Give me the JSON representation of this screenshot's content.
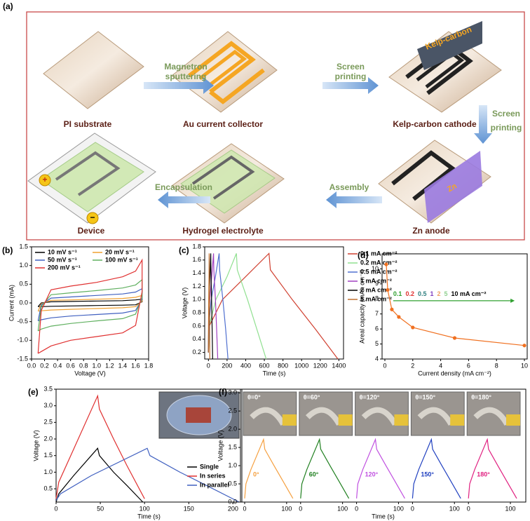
{
  "schematic": {
    "panel_label": "(a)",
    "steps": [
      "PI substrate",
      "Au current collector",
      "Kelp-carbon cathode",
      "Zn anode",
      "Hydrogel electrolyte",
      "Device"
    ],
    "arrows": [
      [
        "Magnetron",
        "sputtering"
      ],
      [
        "Screen",
        "printing"
      ],
      [
        "Screen",
        "printing"
      ],
      [
        "Assembly"
      ],
      [
        "Encapsulation"
      ]
    ],
    "kelp_label": "Kelp-carbon",
    "zn_label": "Zn",
    "plus": "+",
    "minus": "−"
  },
  "chart_data": [
    {
      "type": "line",
      "panel_label": "(b)",
      "xlabel": "Voltage (V)",
      "ylabel": "Current (mA)",
      "xlim": [
        0,
        1.8
      ],
      "ylim": [
        -1.5,
        1.5
      ],
      "xticks": [
        {
          "value": 0,
          "label": "0.0"
        },
        0.2,
        0.4,
        0.6,
        0.8,
        {
          "value": 1,
          "label": "1.0"
        },
        1.2,
        1.4,
        1.6,
        1.8
      ],
      "yticks": [
        -1.5,
        {
          "value": -1,
          "label": "-1.0"
        },
        -0.5,
        {
          "value": 0,
          "label": "0.0"
        },
        0.5,
        {
          "value": 1,
          "label": "1.0"
        },
        1.5
      ],
      "legend": "inside-top",
      "legend_columns": 2,
      "x": [
        0.1,
        0.15,
        0.3,
        0.6,
        1.0,
        1.4,
        1.6,
        1.7,
        1.7,
        1.6,
        1.4,
        1.0,
        0.6,
        0.3,
        0.15,
        0.1
      ],
      "series": [
        {
          "name": "10 mV s⁻¹",
          "color": "#000000",
          "values": [
            -0.1,
            0,
            0.03,
            0.04,
            0.05,
            0.06,
            0.08,
            0.1,
            0.03,
            -0.05,
            -0.06,
            -0.07,
            -0.08,
            -0.09,
            -0.1,
            -0.1
          ]
        },
        {
          "name": "20 mV s⁻¹",
          "color": "#f0a030",
          "values": [
            -0.22,
            -0.02,
            0.07,
            0.08,
            0.1,
            0.12,
            0.15,
            0.2,
            0.05,
            -0.1,
            -0.13,
            -0.15,
            -0.17,
            -0.19,
            -0.21,
            -0.22
          ]
        },
        {
          "name": "50 mV s⁻¹",
          "color": "#4060c0",
          "values": [
            -0.48,
            -0.05,
            0.13,
            0.16,
            0.2,
            0.24,
            0.29,
            0.38,
            0.1,
            -0.2,
            -0.27,
            -0.31,
            -0.35,
            -0.4,
            -0.45,
            -0.48
          ]
        },
        {
          "name": "100 mV s⁻¹",
          "color": "#60b060",
          "values": [
            -0.75,
            -0.1,
            0.22,
            0.27,
            0.33,
            0.4,
            0.48,
            0.62,
            0.15,
            -0.3,
            -0.42,
            -0.48,
            -0.55,
            -0.62,
            -0.7,
            -0.75
          ]
        },
        {
          "name": "200 mV s⁻¹",
          "color": "#e03030",
          "values": [
            -1.35,
            -0.2,
            0.35,
            0.45,
            0.55,
            0.7,
            0.85,
            1.15,
            0.3,
            -0.6,
            -0.8,
            -0.9,
            -1.0,
            -1.15,
            -1.3,
            -1.35
          ]
        }
      ]
    },
    {
      "type": "line",
      "panel_label": "(c)",
      "xlabel": "Time (s)",
      "ylabel": "Voltage (V)",
      "xlim": [
        -40,
        1450
      ],
      "ylim": [
        0.1,
        1.8
      ],
      "xticks": [
        0,
        200,
        400,
        600,
        800,
        1000,
        1200,
        1400
      ],
      "yticks": [
        0.2,
        0.4,
        0.6,
        0.8,
        {
          "value": 1,
          "label": "1.0"
        },
        1.2,
        1.4,
        1.6,
        1.8
      ],
      "legend": "outside-right",
      "series": [
        {
          "name": "0.1 mA cm⁻²",
          "color": "#d04030",
          "x": [
            0,
            10,
            150,
            400,
            650,
            665,
            900,
            1150,
            1390
          ],
          "values": [
            0.2,
            0.6,
            1.0,
            1.35,
            1.7,
            1.45,
            1.0,
            0.55,
            0.1
          ]
        },
        {
          "name": "0.2 mA cm⁻²",
          "color": "#90e090",
          "x": [
            0,
            8,
            80,
            200,
            300,
            310,
            420,
            520,
            620
          ],
          "values": [
            0.2,
            0.6,
            1.0,
            1.35,
            1.7,
            1.45,
            1.0,
            0.55,
            0.1
          ]
        },
        {
          "name": "0.5 mA cm⁻²",
          "color": "#5070d0",
          "x": [
            0,
            4,
            30,
            75,
            115,
            120,
            155,
            185,
            210
          ],
          "values": [
            0.2,
            0.6,
            1.0,
            1.35,
            1.7,
            1.45,
            1.0,
            0.55,
            0.1
          ]
        },
        {
          "name": "1 mA cm⁻²",
          "color": "#a040c0",
          "x": [
            0,
            3,
            15,
            35,
            55,
            58,
            75,
            88,
            100
          ],
          "values": [
            0.2,
            0.6,
            1.0,
            1.35,
            1.7,
            1.45,
            1.0,
            0.55,
            0.1
          ]
        },
        {
          "name": "2 mA cm⁻²",
          "color": "#000000",
          "x": [
            0,
            2,
            7,
            16,
            25,
            27,
            34,
            40,
            45
          ],
          "values": [
            0.2,
            0.6,
            1.0,
            1.35,
            1.7,
            1.45,
            1.0,
            0.55,
            0.1
          ]
        },
        {
          "name": "5 mA cm⁻²",
          "color": "#c07030",
          "x": [
            0,
            1,
            3,
            6,
            8,
            9,
            11,
            13,
            15
          ],
          "values": [
            0.2,
            0.6,
            1.0,
            1.35,
            1.7,
            1.45,
            1.0,
            0.55,
            0.1
          ]
        }
      ]
    },
    {
      "type": "line",
      "panel_label": "(d)",
      "xlabel": "Current density (mA cm⁻²)",
      "ylabel": "Areal capacity (mAh cm⁻²)",
      "xlim": [
        -0.2,
        10.2
      ],
      "ylim": [
        4,
        11
      ],
      "xticks": [
        0,
        2,
        4,
        6,
        8,
        10
      ],
      "yticks": [
        4,
        5,
        6,
        7,
        8,
        9,
        10
      ],
      "markers": true,
      "annotation": {
        "labels": [
          "0.1",
          "0.2",
          "0.5",
          "1",
          "2",
          "5",
          "10 mA cm⁻²"
        ],
        "colors": [
          "#30a030",
          "#e03030",
          "#308080",
          "#8040c0",
          "#f0a060",
          "#90d090",
          "#000000"
        ],
        "arrow_color": "#30a030"
      },
      "series": [
        {
          "color": "#f07020",
          "x": [
            0.1,
            0.2,
            0.5,
            1,
            2,
            5,
            10
          ],
          "values": [
            10.3,
            8.6,
            7.3,
            6.8,
            6.1,
            5.4,
            4.9
          ]
        }
      ]
    },
    {
      "type": "line",
      "panel_label": "(e)",
      "xlabel": "Time (s)",
      "ylabel": "Voltage (V)",
      "xlim": [
        0,
        210
      ],
      "ylim": [
        0.1,
        3.5
      ],
      "xticks": [
        0,
        50,
        100,
        150,
        200
      ],
      "yticks": [
        0.5,
        {
          "value": 1,
          "label": "1.0"
        },
        1.5,
        {
          "value": 2,
          "label": "2.0"
        },
        2.5,
        {
          "value": 3,
          "label": "3.0"
        },
        3.5
      ],
      "legend": "lower-right",
      "photo": true,
      "series": [
        {
          "name": "Single",
          "color": "#000000",
          "x": [
            0,
            3,
            20,
            47,
            49,
            65,
            80,
            98
          ],
          "values": [
            0.1,
            0.35,
            0.9,
            1.72,
            1.5,
            1.0,
            0.6,
            0.1
          ]
        },
        {
          "name": "In series",
          "color": "#e03030",
          "x": [
            0,
            3,
            20,
            47,
            49,
            65,
            80,
            100
          ],
          "values": [
            0.2,
            0.7,
            1.7,
            3.3,
            2.9,
            2.0,
            1.2,
            0.2
          ]
        },
        {
          "name": "In parallel",
          "color": "#4060c0",
          "x": [
            0,
            5,
            40,
            103,
            106,
            140,
            170,
            207
          ],
          "values": [
            0.15,
            0.35,
            0.9,
            1.72,
            1.5,
            1.0,
            0.6,
            0.1
          ]
        }
      ]
    },
    {
      "type": "line",
      "panel_label": "(f)",
      "xlabel": "Time (s)",
      "ylabel": "Voltage (V)",
      "ylim": [
        0,
        3.1
      ],
      "yticks": [
        {
          "value": 0,
          "label": "0.0"
        },
        0.5,
        {
          "value": 1,
          "label": "1.0"
        },
        1.5,
        {
          "value": 2,
          "label": "2.0"
        },
        2.5,
        {
          "value": 3,
          "label": "3.0"
        }
      ],
      "legend": "inline",
      "series": [
        {
          "name": "0°",
          "photo_label": "θ=0°",
          "color": "#f5a040",
          "xlim": [
            0,
            120
          ],
          "xticks": [
            0,
            100
          ],
          "x": [
            0,
            3,
            15,
            45,
            48,
            70,
            90,
            115
          ],
          "values": [
            0.1,
            0.5,
            0.9,
            1.72,
            1.45,
            1.0,
            0.6,
            0.1
          ]
        },
        {
          "name": "60°",
          "photo_label": "θ=60°",
          "color": "#208020",
          "xlim": [
            0,
            120
          ],
          "xticks": [
            0,
            100
          ],
          "x": [
            0,
            3,
            15,
            45,
            48,
            70,
            90,
            115
          ],
          "values": [
            0.1,
            0.5,
            0.9,
            1.72,
            1.45,
            1.0,
            0.6,
            0.1
          ]
        },
        {
          "name": "120°",
          "photo_label": "θ=120°",
          "color": "#c050e0",
          "xlim": [
            0,
            120
          ],
          "xticks": [
            0,
            100
          ],
          "x": [
            0,
            3,
            15,
            45,
            48,
            70,
            90,
            115
          ],
          "values": [
            0.1,
            0.5,
            0.9,
            1.72,
            1.45,
            1.0,
            0.6,
            0.1
          ]
        },
        {
          "name": "150°",
          "photo_label": "θ=150°",
          "color": "#2040c0",
          "xlim": [
            0,
            120
          ],
          "xticks": [
            0,
            100
          ],
          "x": [
            0,
            3,
            15,
            45,
            48,
            70,
            90,
            115
          ],
          "values": [
            0.1,
            0.5,
            0.9,
            1.72,
            1.45,
            1.0,
            0.6,
            0.1
          ]
        },
        {
          "name": "180°",
          "photo_label": "θ=180°",
          "color": "#e02080",
          "xlim": [
            0,
            120
          ],
          "xticks": [
            0,
            100
          ],
          "x": [
            0,
            3,
            15,
            45,
            48,
            70,
            90,
            115
          ],
          "values": [
            0.1,
            0.5,
            0.9,
            1.72,
            1.45,
            1.0,
            0.6,
            0.1
          ]
        }
      ]
    }
  ]
}
